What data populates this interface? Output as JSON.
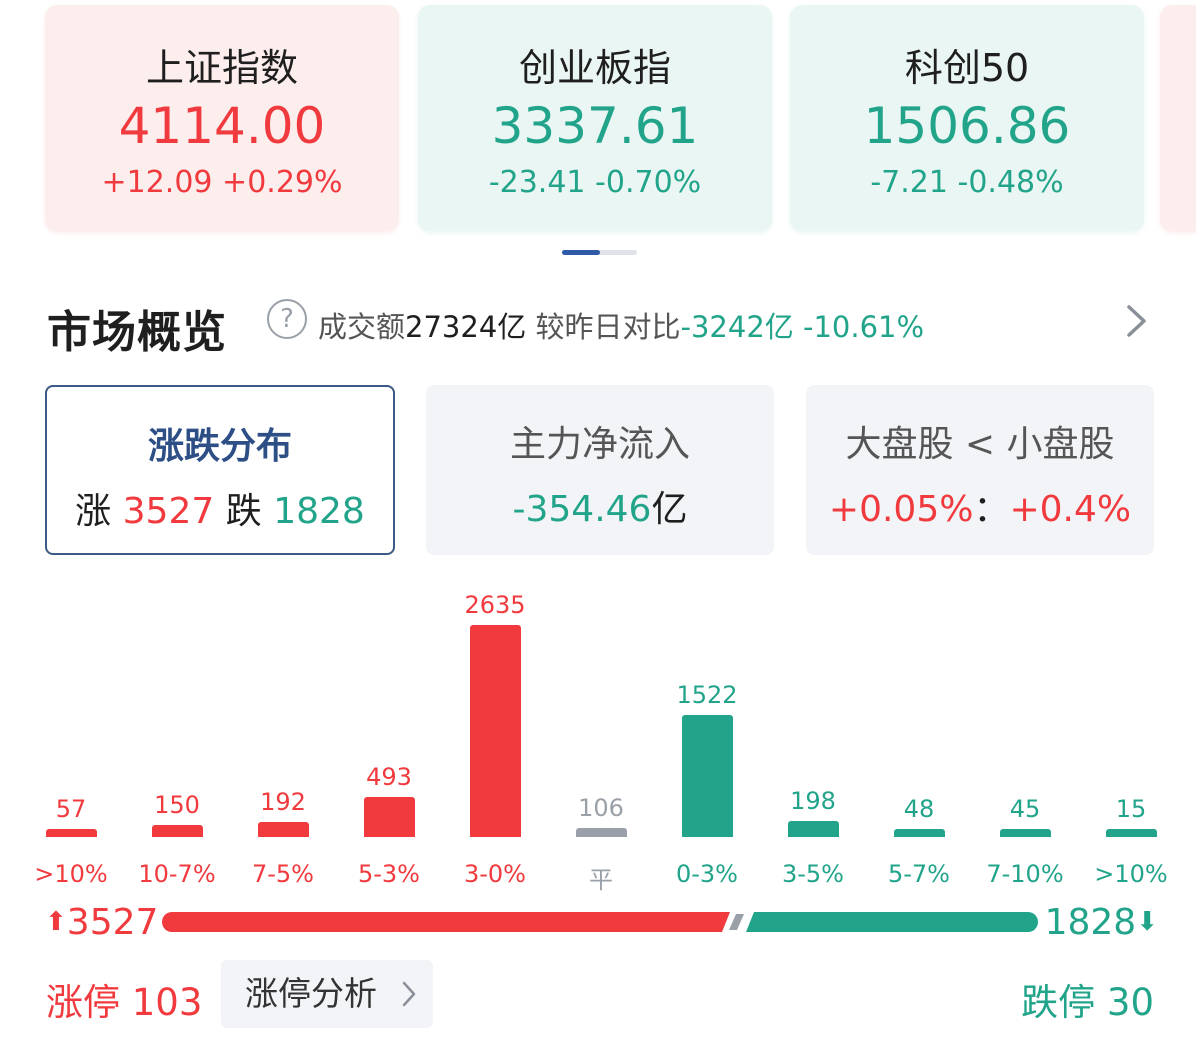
{
  "indices": [
    {
      "name": "上证指数",
      "price": "4114.00",
      "change": "+12.09 +0.29%",
      "trend": "up"
    },
    {
      "name": "创业板指",
      "price": "3337.61",
      "change": "-23.41 -0.70%",
      "trend": "down"
    },
    {
      "name": "科创50",
      "price": "1506.86",
      "change": "-7.21 -0.48%",
      "trend": "down"
    }
  ],
  "overview": {
    "title": "市场概览",
    "help_glyph": "?",
    "turnover_label": "成交额",
    "turnover_value": "27324亿",
    "compare_label": "较昨日对比",
    "compare_value": "-3242亿",
    "compare_pct": "-10.61%"
  },
  "tabs": {
    "distribution": {
      "title": "涨跌分布",
      "up_label": "涨",
      "up_value": "3527",
      "down_label": "跌",
      "down_value": "1828"
    },
    "net_inflow": {
      "title": "主力净流入",
      "value": "-354.46",
      "unit": "亿"
    },
    "cap_compare": {
      "title": "大盘股 < 小盘股",
      "large": "+0.05%",
      "sep": "：",
      "small": "+0.4%"
    }
  },
  "chart_data": {
    "type": "bar",
    "categories": [
      ">10%",
      "10-7%",
      "7-5%",
      "5-3%",
      "3-0%",
      "平",
      "0-3%",
      "3-5%",
      "5-7%",
      "7-10%",
      ">10%"
    ],
    "values": [
      57,
      150,
      192,
      493,
      2635,
      106,
      1522,
      198,
      48,
      45,
      15
    ],
    "bar_colors": [
      "#f03a3e",
      "#f03a3e",
      "#f03a3e",
      "#f03a3e",
      "#f03a3e",
      "#9aa0a8",
      "#22a48a",
      "#22a48a",
      "#22a48a",
      "#22a48a",
      "#22a48a"
    ]
  },
  "ratio": {
    "up_count": "3527",
    "down_count": "1828",
    "up_fraction": 0.6587
  },
  "limits": {
    "up_label": "涨停 103",
    "analysis_label": "涨停分析",
    "down_label": "跌停 30"
  },
  "colors": {
    "up": "#f03a3e",
    "down": "#22a48a",
    "flat": "#9aa0a8",
    "accent": "#2e5aa8"
  }
}
